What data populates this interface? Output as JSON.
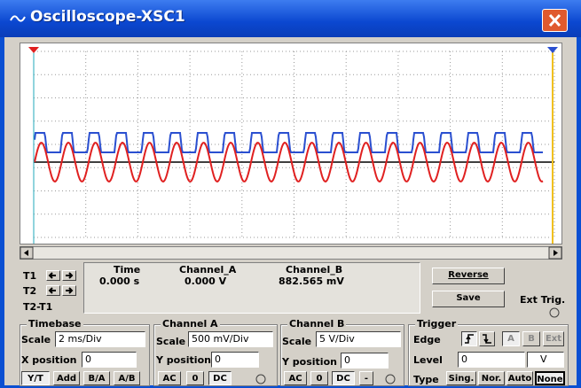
{
  "window": {
    "title": "Oscilloscope-XSC1"
  },
  "cursors": {
    "labels": [
      "T1",
      "T2",
      "T2-T1"
    ]
  },
  "readout": {
    "headers": [
      "Time",
      "Channel_A",
      "Channel_B"
    ],
    "t1": [
      "0.000 s",
      "0.000 V",
      "882.565 mV"
    ]
  },
  "buttons": {
    "reverse": "Reverse",
    "save": "Save",
    "ext_trig": "Ext Trig."
  },
  "timebase": {
    "title": "Timebase",
    "scale_label": "Scale",
    "scale": "2 ms/Div",
    "xpos_label": "X position",
    "xpos": "0",
    "modes": [
      "Y/T",
      "Add",
      "B/A",
      "A/B"
    ]
  },
  "channel_a": {
    "title": "Channel A",
    "scale_label": "Scale",
    "scale": "500 mV/Div",
    "ypos_label": "Y position",
    "ypos": "0",
    "coupling": [
      "AC",
      "0",
      "DC"
    ]
  },
  "channel_b": {
    "title": "Channel B",
    "scale_label": "Scale",
    "scale": "5 V/Div",
    "ypos_label": "Y position",
    "ypos": "0",
    "coupling": [
      "AC",
      "0",
      "DC",
      "-"
    ]
  },
  "trigger": {
    "title": "Trigger",
    "edge_label": "Edge",
    "sources": [
      "A",
      "B",
      "Ext"
    ],
    "level_label": "Level",
    "level": "0",
    "level_unit": "V",
    "type_label": "Type",
    "types": [
      "Sing.",
      "Nor.",
      "Auto",
      "None"
    ]
  }
}
